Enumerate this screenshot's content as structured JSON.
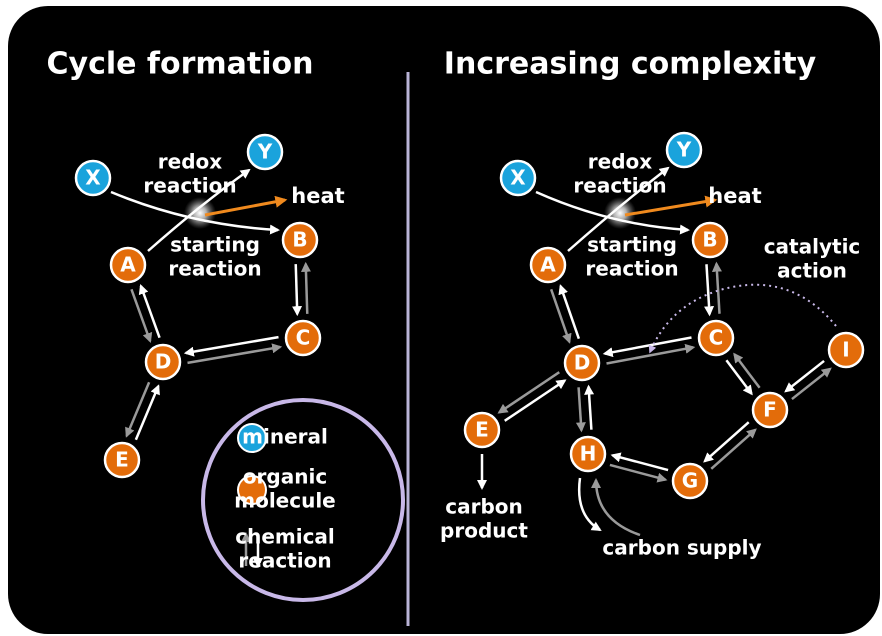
{
  "panels": [
    {
      "title": "Cycle formation",
      "nodes": [
        "X",
        "Y",
        "A",
        "B",
        "C",
        "D",
        "E"
      ],
      "redox": [
        "redox",
        "reaction"
      ],
      "heat": "heat",
      "starting": [
        "starting",
        "reaction"
      ]
    },
    {
      "title": "Increasing complexity",
      "nodes": [
        "X",
        "Y",
        "A",
        "B",
        "C",
        "D",
        "E",
        "H",
        "G",
        "F",
        "I"
      ],
      "redox": [
        "redox",
        "reaction"
      ],
      "heat": "heat",
      "starting": [
        "starting",
        "reaction"
      ],
      "catalytic": [
        "catalytic",
        "action"
      ],
      "product": [
        "carbon",
        "product"
      ],
      "supply": "carbon supply"
    }
  ],
  "legend": {
    "mineral": "mineral",
    "organic": [
      "organic",
      "molecule"
    ],
    "reaction": [
      "chemical",
      "reaction"
    ]
  }
}
